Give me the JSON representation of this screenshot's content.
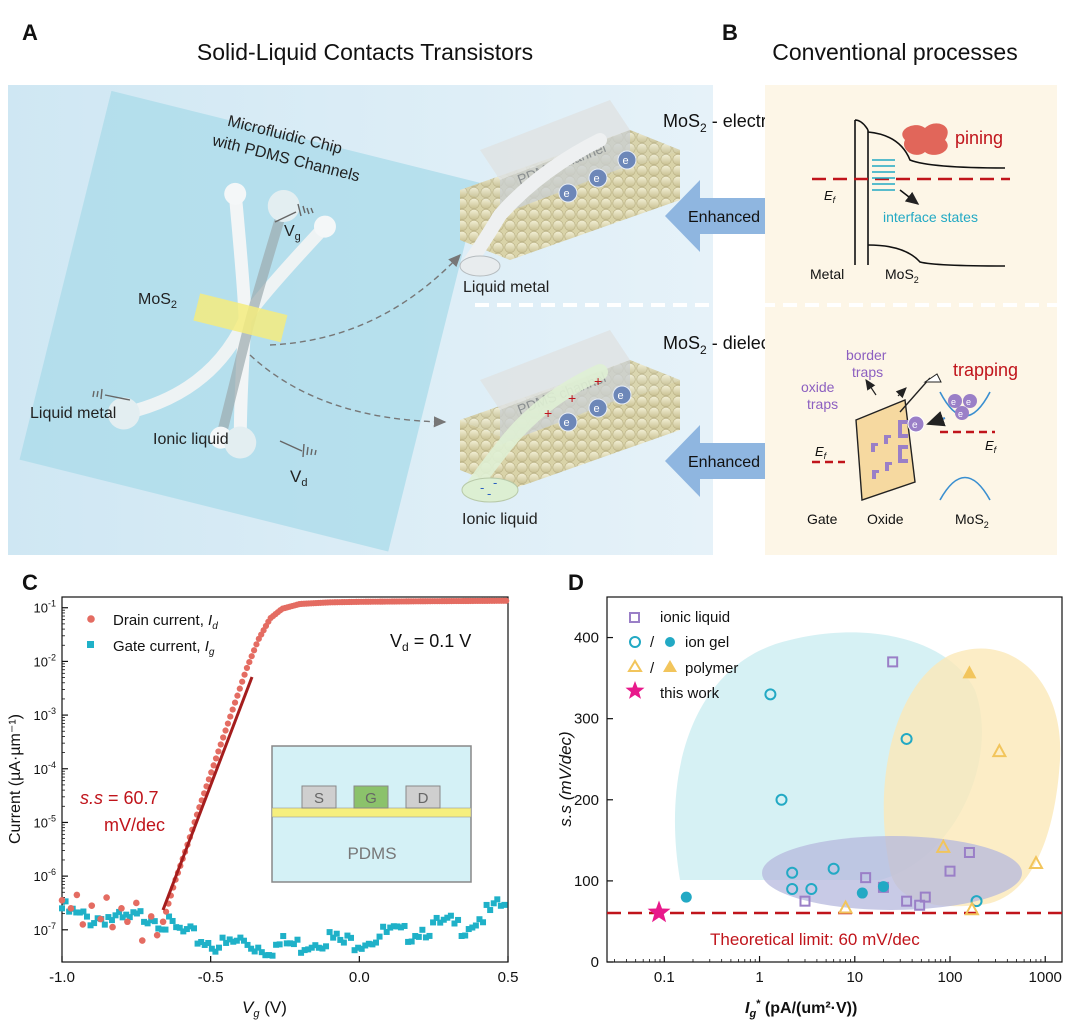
{
  "panels": {
    "a": {
      "letter": "A",
      "title": "Solid-Liquid Contacts Transistors",
      "chip_label_1": "Microfluidic Chip",
      "chip_label_2": "with PDMS Channels",
      "vg": "V",
      "vg_sub": "g",
      "vd": "V",
      "vd_sub": "d",
      "mos2": "MoS",
      "mos2_sub": "2",
      "liquid_metal": "Liquid metal",
      "ionic_liquid": "Ionic liquid",
      "pdms_channel": "PDMS channel",
      "electron": "e",
      "plus": "+",
      "minus": "-",
      "enhanced": "Enhanced",
      "electrode_label": "MoS",
      "electrode_sub": "2",
      "electrode_suffix": " - electrode",
      "dielectric_label": "MoS",
      "dielectric_sub": "2",
      "dielectric_suffix": " - dielectric"
    },
    "b": {
      "letter": "B",
      "title": "Conventional processes",
      "pining": "pining",
      "ef": "E",
      "ef_sub": "f",
      "interface_states": "interface states",
      "metal": "Metal",
      "mos2": "MoS",
      "mos2_sub": "2",
      "border_1": "border",
      "border_2": "traps",
      "oxide_1": "oxide",
      "oxide_2": "traps",
      "trapping": "trapping",
      "gate": "Gate",
      "oxide": "Oxide"
    },
    "c": {
      "letter": "C",
      "ylabel": "Current (µA·µm⁻¹)",
      "xlabel": "V",
      "xlabel_sub": "g",
      "xlabel_unit": " (V)",
      "legend_drain": "Drain current, ",
      "legend_drain_sym": "I",
      "legend_drain_sub": "d",
      "legend_gate": "Gate current, ",
      "legend_gate_sym": "I",
      "legend_gate_sub": "g",
      "vd_note": "V",
      "vd_note_sub": "d",
      "vd_note_val": " = 0.1 V",
      "ss_sym": "s.s",
      "ss_val": " = 60.7",
      "ss_unit": "mV/dec",
      "inset_s": "S",
      "inset_g": "G",
      "inset_d": "D",
      "inset_pdms": "PDMS"
    },
    "d": {
      "letter": "D",
      "ylabel": "s.s (mV/dec)",
      "xlabel_sym": "I",
      "xlabel_sub": "g",
      "xlabel_sup": "*",
      "xlabel_unit": " (pA/(um²·V))",
      "legend_ionic": "ionic liquid",
      "legend_slash": "/",
      "legend_gel": "ion gel",
      "legend_polymer": "polymer",
      "legend_this": "this work",
      "limit": "Theoretical limit: 60 mV/dec"
    }
  },
  "colors": {
    "drain": "#e46c62",
    "gate": "#1fb1c8",
    "fit": "#a51d1d",
    "red_text": "#c0141b",
    "purple": "#9a7fc7",
    "cyan": "#22a9c4",
    "orange": "#f2c55c",
    "magenta": "#e8198b",
    "arrow_blue": "#8fb6e0"
  },
  "chart_data": [
    {
      "id": "C",
      "type": "scatter",
      "xlabel": "Vg (V)",
      "ylabel": "Current (µA·µm⁻¹)",
      "xlim": [
        -1.0,
        0.5
      ],
      "ylim_log10": [
        -7.6,
        -0.8
      ],
      "y_scale": "log",
      "x_ticks": [
        "-1.0",
        "-0.5",
        "0.0",
        "0.5"
      ],
      "y_ticks": [
        {
          "exp": -7,
          "base": "10",
          "sup": "-7"
        },
        {
          "exp": -6,
          "base": "10",
          "sup": "-6"
        },
        {
          "exp": -5,
          "base": "10",
          "sup": "-5"
        },
        {
          "exp": -4,
          "base": "10",
          "sup": "-4"
        },
        {
          "exp": -3,
          "base": "10",
          "sup": "-3"
        },
        {
          "exp": -2,
          "base": "10",
          "sup": "-2"
        },
        {
          "exp": -1,
          "base": "10",
          "sup": "-1"
        }
      ],
      "series": [
        {
          "name": "Drain current, Id",
          "model": "sigmoid",
          "subthreshold_slope_mV_per_dec": 60.7,
          "points_x_log10y": [
            [
              -1.0,
              -6.45
            ],
            [
              -0.97,
              -6.6
            ],
            [
              -0.95,
              -6.35
            ],
            [
              -0.93,
              -6.9
            ],
            [
              -0.9,
              -6.55
            ],
            [
              -0.87,
              -6.8
            ],
            [
              -0.85,
              -6.4
            ],
            [
              -0.83,
              -6.95
            ],
            [
              -0.8,
              -6.6
            ],
            [
              -0.78,
              -6.85
            ],
            [
              -0.75,
              -6.5
            ],
            [
              -0.73,
              -7.2
            ],
            [
              -0.7,
              -6.75
            ],
            [
              -0.68,
              -7.1
            ],
            [
              -0.66,
              -6.85
            ],
            [
              -0.62,
              -6.1
            ],
            [
              -0.58,
              -5.45
            ],
            [
              -0.54,
              -4.75
            ],
            [
              -0.5,
              -4.1
            ],
            [
              -0.46,
              -3.45
            ],
            [
              -0.42,
              -2.8
            ],
            [
              -0.38,
              -2.15
            ],
            [
              -0.34,
              -1.6
            ],
            [
              -0.3,
              -1.2
            ],
            [
              -0.26,
              -1.02
            ],
            [
              -0.2,
              -0.93
            ],
            [
              -0.1,
              -0.9
            ],
            [
              0.0,
              -0.89
            ],
            [
              0.2,
              -0.88
            ],
            [
              0.5,
              -0.87
            ]
          ]
        },
        {
          "name": "Gate current, Ig",
          "points_x_log10y": [
            [
              -1.0,
              -6.6
            ],
            [
              -0.95,
              -6.75
            ],
            [
              -0.9,
              -6.8
            ],
            [
              -0.85,
              -6.75
            ],
            [
              -0.8,
              -6.85
            ],
            [
              -0.75,
              -6.8
            ],
            [
              -0.7,
              -6.7
            ],
            [
              -0.65,
              -6.9
            ],
            [
              -0.6,
              -7.05
            ],
            [
              -0.55,
              -7.15
            ],
            [
              -0.5,
              -7.25
            ],
            [
              -0.45,
              -7.3
            ],
            [
              -0.4,
              -7.2
            ],
            [
              -0.35,
              -7.3
            ],
            [
              -0.3,
              -7.35
            ],
            [
              -0.25,
              -7.25
            ],
            [
              -0.2,
              -7.3
            ],
            [
              -0.15,
              -7.2
            ],
            [
              -0.1,
              -7.15
            ],
            [
              -0.05,
              -7.25
            ],
            [
              0.0,
              -7.2
            ],
            [
              0.05,
              -7.15
            ],
            [
              0.1,
              -7.05
            ],
            [
              0.15,
              -7.1
            ],
            [
              0.2,
              -7.0
            ],
            [
              0.25,
              -6.95
            ],
            [
              0.3,
              -6.9
            ],
            [
              0.35,
              -6.95
            ],
            [
              0.4,
              -6.8
            ],
            [
              0.45,
              -6.65
            ],
            [
              0.5,
              -6.5
            ]
          ]
        }
      ]
    },
    {
      "id": "D",
      "type": "scatter",
      "xlabel": "Ig* (pA/(um²·V))",
      "ylabel": "s.s (mV/dec)",
      "x_scale": "log",
      "xlim": [
        0.025,
        1500
      ],
      "ylim": [
        0,
        450
      ],
      "x_ticks": [
        "0.1",
        "1",
        "10",
        "100",
        "1000"
      ],
      "y_ticks": [
        "0",
        "100",
        "200",
        "300",
        "400"
      ],
      "reference_line": {
        "y": 60,
        "label": "Theoretical limit: 60 mV/dec"
      },
      "series": [
        {
          "name": "ionic liquid",
          "marker": "open-square",
          "points": [
            [
              25,
              370
            ],
            [
              160,
              135
            ],
            [
              100,
              112
            ],
            [
              13,
              104
            ],
            [
              3,
              75
            ],
            [
              35,
              75
            ],
            [
              48,
              70
            ],
            [
              55,
              80
            ],
            [
              20,
              92
            ]
          ]
        },
        {
          "name": "ion gel (open)",
          "marker": "open-circle",
          "points": [
            [
              1.3,
              330
            ],
            [
              1.7,
              200
            ],
            [
              35,
              275
            ],
            [
              2.2,
              110
            ],
            [
              2.2,
              90
            ],
            [
              3.5,
              90
            ],
            [
              6,
              115
            ],
            [
              190,
              75
            ]
          ]
        },
        {
          "name": "ion gel (filled)",
          "marker": "filled-circle",
          "points": [
            [
              0.17,
              80
            ],
            [
              12,
              85
            ],
            [
              20,
              93
            ]
          ]
        },
        {
          "name": "polymer (open)",
          "marker": "open-triangle",
          "points": [
            [
              330,
              260
            ],
            [
              85,
              142
            ],
            [
              8,
              67
            ],
            [
              170,
              65
            ],
            [
              800,
              122
            ]
          ]
        },
        {
          "name": "polymer (filled)",
          "marker": "filled-triangle",
          "points": [
            [
              160,
              357
            ]
          ]
        },
        {
          "name": "this work",
          "marker": "star",
          "points": [
            [
              0.088,
              61
            ]
          ]
        }
      ]
    }
  ]
}
